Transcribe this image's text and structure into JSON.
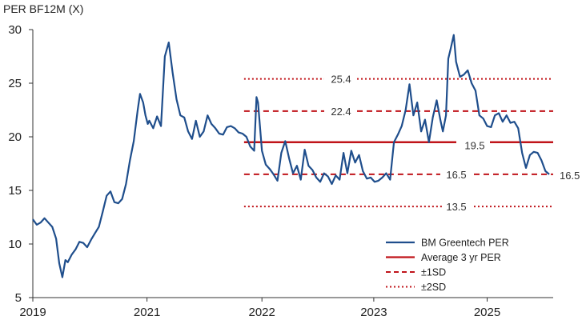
{
  "chart_data": {
    "type": "line",
    "title": "PER BF12M (X)",
    "xlabel": "",
    "ylabel": "",
    "xlim": [
      2019.0,
      2025.7
    ],
    "ylim": [
      5,
      30
    ],
    "y_ticks": [
      5,
      10,
      15,
      20,
      25,
      30
    ],
    "x_ticks": [
      {
        "label": "2019",
        "value": 2019.0
      },
      {
        "label": "2021",
        "value": 2020.47
      },
      {
        "label": "2022",
        "value": 2021.95
      },
      {
        "label": "2023",
        "value": 2023.39
      },
      {
        "label": "2025",
        "value": 2024.85
      }
    ],
    "series": [
      {
        "name": "BM Greentech PER",
        "color": "#1f4e8c",
        "x": [
          2019.0,
          2019.05,
          2019.1,
          2019.15,
          2019.2,
          2019.25,
          2019.3,
          2019.34,
          2019.38,
          2019.42,
          2019.45,
          2019.5,
          2019.55,
          2019.6,
          2019.65,
          2019.7,
          2019.75,
          2019.8,
          2019.85,
          2019.9,
          2019.95,
          2020.0,
          2020.05,
          2020.1,
          2020.15,
          2020.2,
          2020.25,
          2020.3,
          2020.35,
          2020.38,
          2020.42,
          2020.45,
          2020.48,
          2020.5,
          2020.55,
          2020.6,
          2020.65,
          2020.7,
          2020.75,
          2020.8,
          2020.85,
          2020.9,
          2020.95,
          2021.0,
          2021.05,
          2021.1,
          2021.15,
          2021.2,
          2021.25,
          2021.3,
          2021.35,
          2021.4,
          2021.45,
          2021.5,
          2021.55,
          2021.6,
          2021.65,
          2021.7,
          2021.75,
          2021.8,
          2021.85,
          2021.88,
          2021.9,
          2021.95,
          2022.0,
          2022.05,
          2022.1,
          2022.15,
          2022.2,
          2022.25,
          2022.3,
          2022.35,
          2022.4,
          2022.45,
          2022.5,
          2022.55,
          2022.6,
          2022.65,
          2022.7,
          2022.75,
          2022.8,
          2022.85,
          2022.9,
          2022.95,
          2023.0,
          2023.05,
          2023.1,
          2023.15,
          2023.2,
          2023.25,
          2023.3,
          2023.35,
          2023.4,
          2023.45,
          2023.5,
          2023.55,
          2023.6,
          2023.65,
          2023.7,
          2023.75,
          2023.8,
          2023.85,
          2023.9,
          2023.95,
          2024.0,
          2024.05,
          2024.1,
          2024.15,
          2024.2,
          2024.25,
          2024.28,
          2024.32,
          2024.35,
          2024.38,
          2024.42,
          2024.45,
          2024.5,
          2024.55,
          2024.6,
          2024.65,
          2024.7,
          2024.75,
          2024.8,
          2024.85,
          2024.9,
          2024.95,
          2025.0,
          2025.05,
          2025.1,
          2025.15,
          2025.2,
          2025.25,
          2025.3,
          2025.35,
          2025.4,
          2025.45,
          2025.5,
          2025.55,
          2025.6,
          2025.65
        ],
        "values": [
          12.3,
          11.8,
          12.0,
          12.4,
          12.0,
          11.6,
          10.5,
          8.2,
          6.9,
          8.5,
          8.3,
          9.0,
          9.5,
          10.2,
          10.1,
          9.7,
          10.4,
          11.0,
          11.6,
          13.0,
          14.5,
          14.9,
          13.9,
          13.8,
          14.2,
          15.6,
          17.8,
          19.6,
          22.5,
          24.0,
          23.2,
          22.0,
          21.2,
          21.5,
          20.8,
          21.9,
          21.0,
          27.5,
          28.8,
          26.0,
          23.5,
          22.0,
          21.8,
          20.5,
          19.8,
          21.5,
          20.0,
          20.5,
          22.0,
          21.2,
          20.8,
          20.3,
          20.2,
          20.9,
          21.0,
          20.8,
          20.4,
          20.3,
          20.0,
          19.1,
          18.7,
          23.7,
          23.2,
          18.7,
          17.4,
          17.0,
          16.5,
          15.9,
          18.5,
          19.6,
          18.0,
          16.6,
          17.3,
          16.0,
          18.8,
          17.3,
          16.9,
          16.2,
          15.8,
          16.6,
          16.3,
          15.6,
          16.4,
          16.0,
          18.5,
          16.6,
          18.7,
          17.6,
          18.3,
          16.8,
          16.1,
          16.2,
          15.8,
          15.9,
          16.2,
          16.6,
          16.0,
          19.5,
          20.2,
          21.0,
          22.5,
          24.9,
          22.0,
          23.2,
          20.5,
          21.6,
          19.5,
          21.8,
          23.4,
          21.5,
          20.5,
          22.0,
          27.3,
          28.2,
          29.5,
          27.0,
          25.6,
          25.8,
          26.2,
          25.0,
          24.3,
          22.0,
          21.7,
          21.0,
          20.9,
          22.0,
          22.2,
          21.4,
          22.0,
          21.3,
          21.4,
          20.8,
          18.5,
          17.1,
          18.3,
          18.6,
          18.5,
          17.8,
          16.8,
          16.5
        ]
      },
      {
        "name": "Average 3 yr PER",
        "color": "#c0141a",
        "style": "solid",
        "value": 19.5,
        "x_start": 2021.72,
        "label": "19.5"
      },
      {
        "name": "±1SD",
        "color": "#c0141a",
        "style": "dashed",
        "levels": [
          22.4,
          16.5
        ],
        "x_start": 2021.72,
        "labels": [
          "22.4",
          "16.5"
        ]
      },
      {
        "name": "±2SD",
        "color": "#c0141a",
        "style": "dotted",
        "levels": [
          25.4,
          13.5
        ],
        "x_start": 2021.72,
        "labels": [
          "25.4",
          "13.5"
        ]
      }
    ],
    "end_label": "16.5",
    "legend": {
      "position": "bottom-right",
      "entries": [
        "BM Greentech PER",
        "Average 3 yr PER",
        "±1SD",
        "±2SD"
      ]
    },
    "grid": false
  }
}
